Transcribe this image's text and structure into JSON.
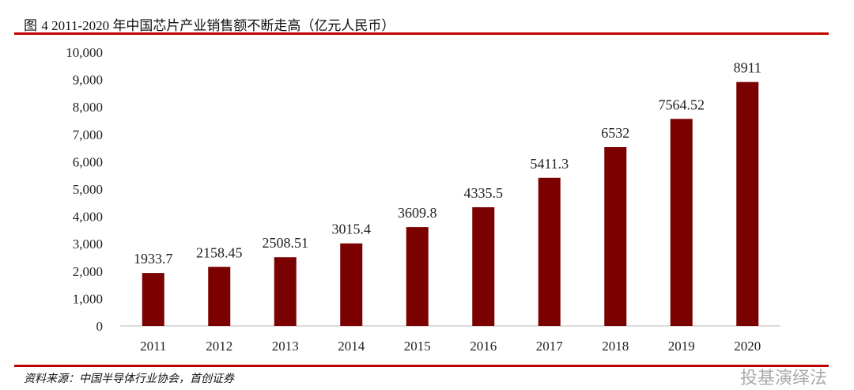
{
  "title_prefix": "图 ",
  "title_number": "4 2011-2020 ",
  "title_text": "年中国芯片产业销售额不断走高（亿元人民币）",
  "source": "资料来源：中国半导体行业协会，首创证券",
  "watermark": "投基演绎法",
  "colors": {
    "bar": "#7b0000",
    "rule": "#c00000"
  },
  "chart_data": {
    "type": "bar",
    "title": "图 4 2011-2020 年中国芯片产业销售额不断走高（亿元人民币）",
    "categories": [
      "2011",
      "2012",
      "2013",
      "2014",
      "2015",
      "2016",
      "2017",
      "2018",
      "2019",
      "2020"
    ],
    "values": [
      1933.7,
      2158.45,
      2508.51,
      3015.4,
      3609.8,
      4335.5,
      5411.3,
      6532,
      7564.52,
      8911
    ],
    "data_labels": [
      "1933.7",
      "2158.45",
      "2508.51",
      "3015.4",
      "3609.8",
      "4335.5",
      "5411.3",
      "6532",
      "7564.52",
      "8911"
    ],
    "yticks": [
      "0",
      "1,000",
      "2,000",
      "3,000",
      "4,000",
      "5,000",
      "6,000",
      "7,000",
      "8,000",
      "9,000",
      "10,000"
    ],
    "ylim": [
      0,
      10000
    ],
    "grid": false,
    "legend": "none"
  }
}
